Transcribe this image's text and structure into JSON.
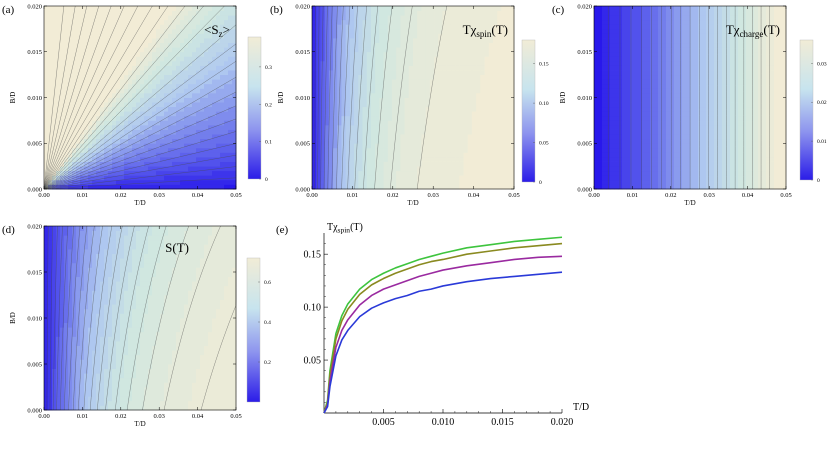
{
  "chart_data": [
    {
      "id": "a",
      "type": "heatmap",
      "panel_label": "(a)",
      "title": "<S_z>",
      "title_main": "<S",
      "title_sub": "z",
      "title_end": ">",
      "xlabel": "T/D",
      "ylabel": "B/D",
      "xlim": [
        0,
        0.05
      ],
      "ylim": [
        0,
        0.02
      ],
      "xticks": [
        "0.00",
        "0.01",
        "0.02",
        "0.03",
        "0.04",
        "0.05"
      ],
      "yticks": [
        "0.000",
        "0.005",
        "0.010",
        "0.015",
        "0.020"
      ],
      "colorbar": {
        "ticks": [
          "0.3",
          "0.2",
          "0.1",
          "0"
        ],
        "tick_values": [
          0.3,
          0.2,
          0.1,
          0
        ],
        "range": [
          0,
          0.38
        ]
      },
      "contour_levels": 24,
      "model": "B/T ratio (fan of straight contours from origin)"
    },
    {
      "id": "b",
      "type": "heatmap",
      "panel_label": "(b)",
      "title": "Tχ_spin(T)",
      "title_main": "Tχ",
      "title_sub": "spin",
      "title_end": "(T)",
      "xlabel": "T/D",
      "ylabel": "B/D",
      "xlim": [
        0,
        0.05
      ],
      "ylim": [
        0,
        0.02
      ],
      "xticks": [
        "0.00",
        "0.01",
        "0.02",
        "0.03",
        "0.04",
        "0.05"
      ],
      "yticks": [
        "0.000",
        "0.005",
        "0.010",
        "0.015",
        "0.020"
      ],
      "colorbar": {
        "ticks": [
          "0.15",
          "0.10",
          "0.05",
          "0"
        ],
        "tick_values": [
          0.15,
          0.1,
          0.05,
          0
        ],
        "range": [
          0,
          0.18
        ]
      },
      "contour_levels": 14
    },
    {
      "id": "c",
      "type": "heatmap",
      "panel_label": "(c)",
      "title": "Tχ_charge(T)",
      "title_main": "Tχ",
      "title_sub": "charge",
      "title_end": "(T)",
      "xlabel": "T/D",
      "ylabel": "B/D",
      "xlim": [
        0,
        0.05
      ],
      "ylim": [
        0,
        0.02
      ],
      "xticks": [
        "0.00",
        "0.01",
        "0.02",
        "0.03",
        "0.04",
        "0.05"
      ],
      "yticks": [
        "0.000",
        "0.005",
        "0.010",
        "0.015",
        "0.020"
      ],
      "colorbar": {
        "ticks": [
          "0.03",
          "0.02",
          "0.01",
          "0"
        ],
        "tick_values": [
          0.03,
          0.02,
          0.01,
          0
        ],
        "range": [
          0,
          0.036
        ]
      },
      "contour_levels": 18
    },
    {
      "id": "d",
      "type": "heatmap",
      "panel_label": "(d)",
      "title": "S(T)",
      "xlabel": "T/D",
      "ylabel": "B/D",
      "xlim": [
        0,
        0.05
      ],
      "ylim": [
        0,
        0.02
      ],
      "xticks": [
        "0.00",
        "0.01",
        "0.02",
        "0.03",
        "0.04",
        "0.05"
      ],
      "yticks": [
        "0.000",
        "0.005",
        "0.010",
        "0.015",
        "0.020"
      ],
      "colorbar": {
        "ticks": [
          "0.6",
          "0.4",
          "0.2"
        ],
        "tick_values": [
          0.6,
          0.4,
          0.2
        ],
        "range": [
          0,
          0.72
        ]
      },
      "contour_levels": 18
    },
    {
      "id": "e",
      "type": "line",
      "panel_label": "(e)",
      "ylabel_main": "Tχ",
      "ylabel_sub": "spin",
      "ylabel_end": "(T)",
      "xlabel": "T/D",
      "xlim": [
        0,
        0.02
      ],
      "ylim": [
        0,
        0.17
      ],
      "xticks": [
        "0.005",
        "0.010",
        "0.015",
        "0.020"
      ],
      "xtick_values": [
        0.005,
        0.01,
        0.015,
        0.02
      ],
      "yticks": [
        "0.05",
        "0.10",
        "0.15"
      ],
      "ytick_values": [
        0.05,
        0.1,
        0.15
      ],
      "series": [
        {
          "name": "green",
          "color": "#3ec43e",
          "points": [
            [
              0.0003,
              0.012
            ],
            [
              0.0005,
              0.04
            ],
            [
              0.001,
              0.075
            ],
            [
              0.0015,
              0.092
            ],
            [
              0.002,
              0.103
            ],
            [
              0.003,
              0.117
            ],
            [
              0.004,
              0.126
            ],
            [
              0.005,
              0.132
            ],
            [
              0.006,
              0.137
            ],
            [
              0.007,
              0.141
            ],
            [
              0.008,
              0.145
            ],
            [
              0.009,
              0.148
            ],
            [
              0.01,
              0.151
            ],
            [
              0.012,
              0.156
            ],
            [
              0.014,
              0.159
            ],
            [
              0.016,
              0.162
            ],
            [
              0.018,
              0.164
            ],
            [
              0.02,
              0.166
            ]
          ]
        },
        {
          "name": "olive",
          "color": "#8a8a20",
          "points": [
            [
              0.0003,
              0.01
            ],
            [
              0.0005,
              0.036
            ],
            [
              0.001,
              0.07
            ],
            [
              0.0015,
              0.087
            ],
            [
              0.002,
              0.098
            ],
            [
              0.003,
              0.112
            ],
            [
              0.004,
              0.121
            ],
            [
              0.005,
              0.127
            ],
            [
              0.006,
              0.132
            ],
            [
              0.007,
              0.136
            ],
            [
              0.008,
              0.14
            ],
            [
              0.009,
              0.143
            ],
            [
              0.01,
              0.145
            ],
            [
              0.012,
              0.15
            ],
            [
              0.014,
              0.153
            ],
            [
              0.016,
              0.156
            ],
            [
              0.018,
              0.158
            ],
            [
              0.02,
              0.16
            ]
          ]
        },
        {
          "name": "purple",
          "color": "#9a2aa0",
          "points": [
            [
              0.0003,
              0.008
            ],
            [
              0.0005,
              0.03
            ],
            [
              0.001,
              0.062
            ],
            [
              0.0015,
              0.078
            ],
            [
              0.002,
              0.088
            ],
            [
              0.003,
              0.102
            ],
            [
              0.004,
              0.111
            ],
            [
              0.005,
              0.117
            ],
            [
              0.006,
              0.121
            ],
            [
              0.007,
              0.125
            ],
            [
              0.008,
              0.129
            ],
            [
              0.009,
              0.132
            ],
            [
              0.01,
              0.135
            ],
            [
              0.012,
              0.139
            ],
            [
              0.014,
              0.142
            ],
            [
              0.016,
              0.145
            ],
            [
              0.018,
              0.147
            ],
            [
              0.02,
              0.148
            ]
          ]
        },
        {
          "name": "blue",
          "color": "#2a3ad8",
          "points": [
            [
              0.0003,
              0.006
            ],
            [
              0.0005,
              0.025
            ],
            [
              0.001,
              0.054
            ],
            [
              0.0015,
              0.069
            ],
            [
              0.002,
              0.078
            ],
            [
              0.003,
              0.091
            ],
            [
              0.004,
              0.099
            ],
            [
              0.005,
              0.104
            ],
            [
              0.006,
              0.108
            ],
            [
              0.007,
              0.111
            ],
            [
              0.008,
              0.115
            ],
            [
              0.009,
              0.117
            ],
            [
              0.01,
              0.12
            ],
            [
              0.012,
              0.124
            ],
            [
              0.014,
              0.127
            ],
            [
              0.016,
              0.129
            ],
            [
              0.018,
              0.131
            ],
            [
              0.02,
              0.133
            ]
          ]
        }
      ]
    }
  ]
}
